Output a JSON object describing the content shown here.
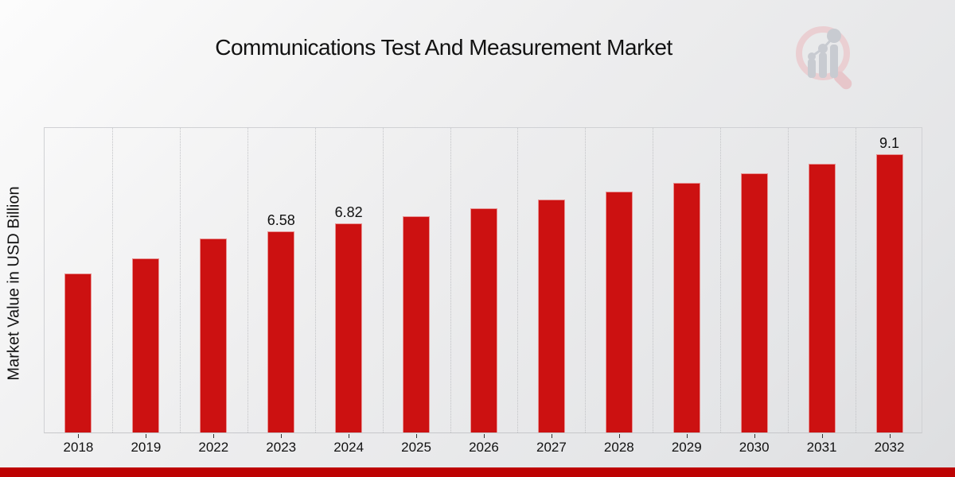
{
  "chart_data": {
    "type": "bar",
    "title": "Communications Test And Measurement Market",
    "ylabel": "Market Value in USD Billion",
    "xlabel": "",
    "categories": [
      "2018",
      "2019",
      "2022",
      "2023",
      "2024",
      "2025",
      "2026",
      "2027",
      "2028",
      "2029",
      "2030",
      "2031",
      "2032"
    ],
    "values": [
      5.2,
      5.7,
      6.34,
      6.58,
      6.82,
      7.06,
      7.33,
      7.6,
      7.88,
      8.16,
      8.46,
      8.77,
      9.1
    ],
    "data_labels": [
      {
        "category": "2023",
        "text": "6.58"
      },
      {
        "category": "2024",
        "text": "6.82"
      },
      {
        "category": "2032",
        "text": "9.1"
      }
    ],
    "ylim": [
      0,
      10
    ],
    "grid": "vertical-dotted",
    "legend": "none",
    "bar_color": "#cc1111"
  },
  "branding": {
    "logo_icon": "magnifier-bar-chart-watermark",
    "logo_ring_color": "#eacfd2",
    "logo_bars_color": "#c8cbd1",
    "ribbon_color": "#bd0202"
  }
}
